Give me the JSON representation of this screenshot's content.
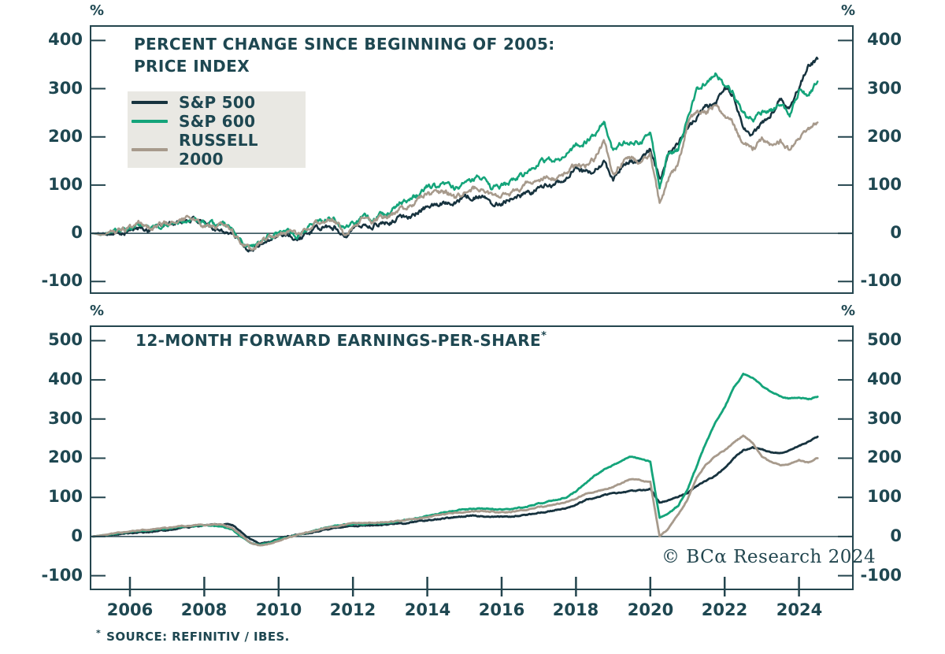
{
  "colors": {
    "text": "#1e4751",
    "axis": "#24454e",
    "sp500": "#17333f",
    "sp600": "#14a47a",
    "russell2000": "#a79a8c",
    "legend_bg": "#e9e8e3"
  },
  "copyright": "© BCα Research 2024",
  "footnote_mark": "*",
  "footnote_text": "SOURCE: REFINITIV / IBES.",
  "chart_data": [
    {
      "type": "line",
      "panel": "top",
      "title_lines": [
        "PERCENT CHANGE SINCE BEGINNING OF 2005:",
        "PRICE INDEX"
      ],
      "unit": "%",
      "ylim": [
        -124,
        430
      ],
      "yticks": [
        400,
        300,
        200,
        100,
        0,
        -100
      ],
      "xticks": [
        2006,
        2008,
        2010,
        2012,
        2014,
        2016,
        2018,
        2020,
        2022,
        2024
      ],
      "x_start": 2005.0,
      "x_step": 0.25,
      "grid": false,
      "legend_position": "top-left-inside",
      "series": [
        {
          "name": "S&P 500",
          "color_key": "sp500",
          "values": [
            0,
            -1,
            2,
            3,
            8,
            10,
            8,
            13,
            20,
            21,
            27,
            30,
            17,
            12,
            8,
            -2,
            -24,
            -38,
            -22,
            -11,
            -6,
            -1,
            -13,
            -3,
            8,
            13,
            13,
            -4,
            11,
            19,
            15,
            22,
            24,
            33,
            37,
            42,
            56,
            58,
            66,
            67,
            74,
            76,
            76,
            63,
            64,
            74,
            78,
            83,
            92,
            100,
            106,
            113,
            133,
            124,
            130,
            147,
            113,
            140,
            149,
            152,
            174,
            112,
            162,
            185,
            218,
            240,
            264,
            265,
            304,
            284,
            220,
            204,
            225,
            247,
            277,
            263,
            304,
            345,
            362
          ]
        },
        {
          "name": "S&P 600",
          "color_key": "sp600",
          "values": [
            0,
            -2,
            4,
            6,
            8,
            15,
            8,
            12,
            20,
            23,
            30,
            26,
            18,
            17,
            21,
            9,
            -18,
            -35,
            -18,
            -6,
            0,
            9,
            -3,
            9,
            23,
            30,
            33,
            9,
            21,
            33,
            30,
            39,
            42,
            61,
            70,
            79,
            98,
            97,
            105,
            91,
            106,
            112,
            118,
            94,
            98,
            106,
            118,
            130,
            148,
            155,
            152,
            164,
            185,
            188,
            206,
            232,
            170,
            188,
            191,
            188,
            209,
            95,
            167,
            173,
            239,
            294,
            314,
            330,
            310,
            290,
            248,
            233,
            252,
            258,
            264,
            245,
            297,
            288,
            315
          ]
        },
        {
          "name": "RUSSELL 2000",
          "color_key": "russell2000",
          "values": [
            0,
            -3,
            4,
            6,
            10,
            18,
            10,
            15,
            22,
            26,
            31,
            27,
            16,
            12,
            15,
            2,
            -22,
            -36,
            -19,
            -5,
            -2,
            6,
            -4,
            8,
            22,
            28,
            30,
            0,
            18,
            28,
            24,
            32,
            36,
            48,
            55,
            68,
            82,
            80,
            88,
            72,
            84,
            92,
            95,
            78,
            76,
            82,
            92,
            108,
            112,
            116,
            114,
            128,
            142,
            138,
            155,
            192,
            120,
            150,
            155,
            148,
            165,
            62,
            115,
            145,
            225,
            255,
            250,
            268,
            245,
            225,
            185,
            175,
            195,
            180,
            190,
            170,
            200,
            215,
            230
          ]
        }
      ]
    },
    {
      "type": "line",
      "panel": "bottom",
      "title": "12-MONTH FORWARD EARNINGS-PER-SHARE",
      "title_sup": "*",
      "unit": "%",
      "ylim": [
        -135,
        537
      ],
      "yticks": [
        500,
        400,
        300,
        200,
        100,
        0,
        -100
      ],
      "xticks": [
        2006,
        2008,
        2010,
        2012,
        2014,
        2016,
        2018,
        2020,
        2022,
        2024
      ],
      "x_start": 2005.0,
      "x_step": 0.25,
      "grid": false,
      "series": [
        {
          "name": "S&P 500",
          "color_key": "sp500",
          "values": [
            0,
            2,
            4,
            6,
            8,
            10,
            12,
            14,
            17,
            20,
            23,
            26,
            28,
            30,
            31,
            29,
            10,
            -8,
            -18,
            -14,
            -6,
            0,
            5,
            8,
            12,
            17,
            21,
            24,
            26,
            28,
            29,
            30,
            31,
            33,
            35,
            38,
            41,
            44,
            47,
            50,
            52,
            53,
            52,
            51,
            50,
            51,
            53,
            56,
            60,
            64,
            68,
            73,
            82,
            92,
            100,
            106,
            110,
            113,
            116,
            118,
            121,
            88,
            92,
            100,
            112,
            128,
            143,
            155,
            175,
            200,
            220,
            228,
            222,
            215,
            214,
            220,
            230,
            242,
            255
          ]
        },
        {
          "name": "S&P 600",
          "color_key": "sp600",
          "values": [
            0,
            3,
            6,
            9,
            12,
            14,
            16,
            18,
            20,
            23,
            25,
            27,
            28,
            27,
            25,
            18,
            0,
            -15,
            -22,
            -16,
            -8,
            -2,
            4,
            10,
            16,
            22,
            27,
            30,
            32,
            32,
            33,
            34,
            36,
            39,
            43,
            47,
            52,
            57,
            62,
            66,
            69,
            71,
            71,
            70,
            69,
            70,
            73,
            78,
            84,
            89,
            94,
            100,
            115,
            135,
            155,
            170,
            182,
            196,
            205,
            198,
            192,
            45,
            60,
            78,
            120,
            180,
            240,
            290,
            330,
            380,
            415,
            405,
            385,
            370,
            358,
            352,
            356,
            350,
            357
          ]
        },
        {
          "name": "RUSSELL 2000",
          "color_key": "russell2000",
          "values": [
            0,
            3,
            7,
            10,
            13,
            16,
            18,
            20,
            22,
            25,
            27,
            28,
            29,
            31,
            30,
            22,
            2,
            -16,
            -24,
            -18,
            -10,
            -3,
            3,
            9,
            15,
            21,
            26,
            30,
            33,
            34,
            35,
            36,
            38,
            40,
            43,
            46,
            50,
            54,
            58,
            61,
            63,
            64,
            64,
            63,
            61,
            63,
            66,
            70,
            75,
            79,
            83,
            88,
            98,
            108,
            115,
            120,
            126,
            138,
            148,
            143,
            138,
            0,
            22,
            55,
            95,
            150,
            185,
            205,
            220,
            240,
            258,
            240,
            205,
            190,
            182,
            186,
            196,
            188,
            200
          ]
        }
      ]
    }
  ]
}
